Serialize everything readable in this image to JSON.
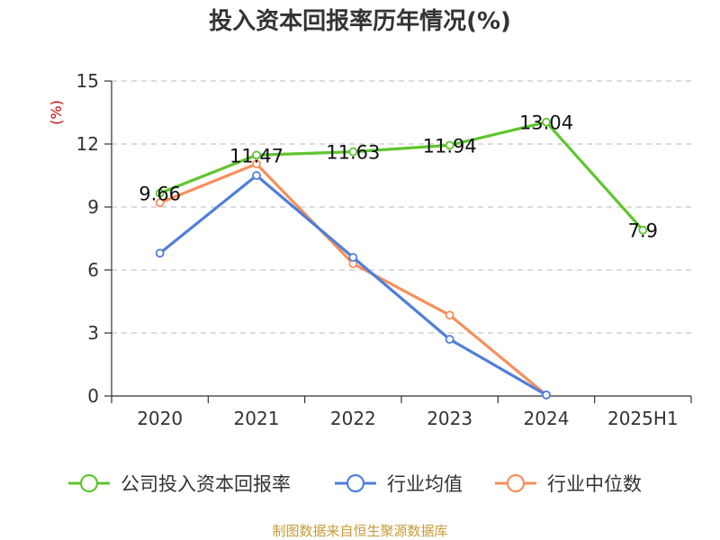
{
  "chart_data": {
    "type": "line",
    "title": "投入资本回报率历年情况(%)",
    "ylabel": "(%)",
    "xlabel": "",
    "categories": [
      "2020",
      "2021",
      "2022",
      "2023",
      "2024",
      "2025H1"
    ],
    "ylim": [
      0,
      15
    ],
    "yticks": [
      "0",
      "3",
      "6",
      "9",
      "12",
      "15"
    ],
    "grid": true,
    "legend_position": "bottom",
    "series": [
      {
        "name": "公司投入资本回报率",
        "color": "#5fc52e",
        "values": [
          9.66,
          11.47,
          11.63,
          11.94,
          13.04,
          7.9
        ],
        "labels": [
          "9.66",
          "11.47",
          "11.63",
          "11.94",
          "13.04",
          "7.9"
        ]
      },
      {
        "name": "行业均值",
        "color": "#4e7fd9",
        "values": [
          6.8,
          10.5,
          6.6,
          2.7,
          0.05,
          null
        ]
      },
      {
        "name": "行业中位数",
        "color": "#f78f5c",
        "values": [
          9.2,
          11.05,
          6.3,
          3.85,
          0.05,
          null
        ]
      }
    ],
    "source": "制图数据来自恒生聚源数据库"
  },
  "colors": {
    "axis": "#333333",
    "grid": "#c8c8c8",
    "ylabel": "#cc0000",
    "source": "#c79b3a"
  }
}
